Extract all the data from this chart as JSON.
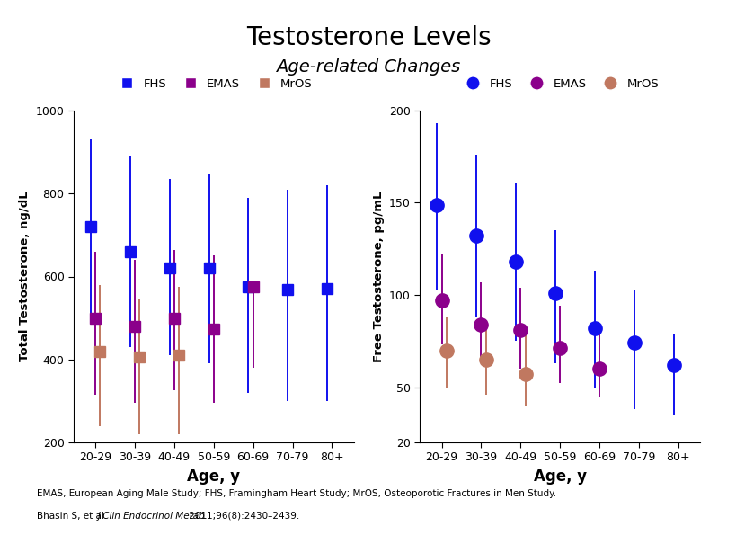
{
  "title": "Testosterone Levels",
  "subtitle": "Age-related Changes",
  "age_labels": [
    "20-29",
    "30-39",
    "40-49",
    "50-59",
    "60-69",
    "70-79",
    "80+"
  ],
  "footnote_line1": "EMAS, European Aging Male Study; FHS, Framingham Heart Study; MrOS, Osteoporotic Fractures in Men Study.",
  "left": {
    "ylabel": "Total Testosterone, ng/dL",
    "xlabel": "Age, y",
    "ylim": [
      200,
      1000
    ],
    "yticks": [
      200,
      400,
      600,
      800,
      1000
    ],
    "FHS": {
      "ages": [
        0,
        1,
        2,
        3,
        4,
        5,
        6
      ],
      "vals": [
        720,
        660,
        620,
        620,
        575,
        568,
        570
      ],
      "lo": [
        510,
        430,
        410,
        390,
        320,
        300,
        300
      ],
      "hi": [
        930,
        890,
        835,
        845,
        790,
        810,
        820
      ]
    },
    "EMAS": {
      "ages": [
        2,
        3,
        4,
        5,
        6
      ],
      "vals": [
        500,
        480,
        500,
        473,
        575
      ],
      "lo": [
        315,
        295,
        325,
        295,
        380
      ],
      "hi": [
        660,
        640,
        665,
        650,
        590
      ]
    },
    "MrOS": {
      "ages": [
        4,
        5,
        6
      ],
      "vals": [
        420,
        405,
        410
      ],
      "lo": [
        240,
        220,
        220
      ],
      "hi": [
        580,
        545,
        575
      ]
    }
  },
  "right": {
    "ylabel": "Free Testosterone, pg/mL",
    "xlabel": "Age, y",
    "ylim": [
      20,
      200
    ],
    "yticks": [
      20,
      50,
      100,
      150,
      200
    ],
    "FHS": {
      "ages": [
        0,
        1,
        2,
        3,
        4,
        5,
        6
      ],
      "vals": [
        149,
        132,
        118,
        101,
        82,
        74,
        62
      ],
      "lo": [
        103,
        88,
        75,
        63,
        50,
        38,
        35
      ],
      "hi": [
        193,
        176,
        161,
        135,
        113,
        103,
        79
      ]
    },
    "EMAS": {
      "ages": [
        2,
        3,
        4,
        5,
        6
      ],
      "vals": [
        97,
        84,
        81,
        71,
        60
      ],
      "lo": [
        73,
        63,
        60,
        52,
        45
      ],
      "hi": [
        122,
        107,
        104,
        94,
        79
      ]
    },
    "MrOS": {
      "ages": [
        4,
        5,
        6
      ],
      "vals": [
        70,
        65,
        57
      ],
      "lo": [
        50,
        46,
        40
      ],
      "hi": [
        88,
        83,
        79
      ]
    }
  },
  "colors": {
    "FHS": "#1010EE",
    "EMAS": "#8B008B",
    "MrOS": "#C07860"
  },
  "offsets": {
    "FHS": -0.12,
    "EMAS": 0.0,
    "MrOS": 0.12
  },
  "marker_size_sq": 9,
  "marker_size_circle": 11,
  "linewidth": 1.4
}
